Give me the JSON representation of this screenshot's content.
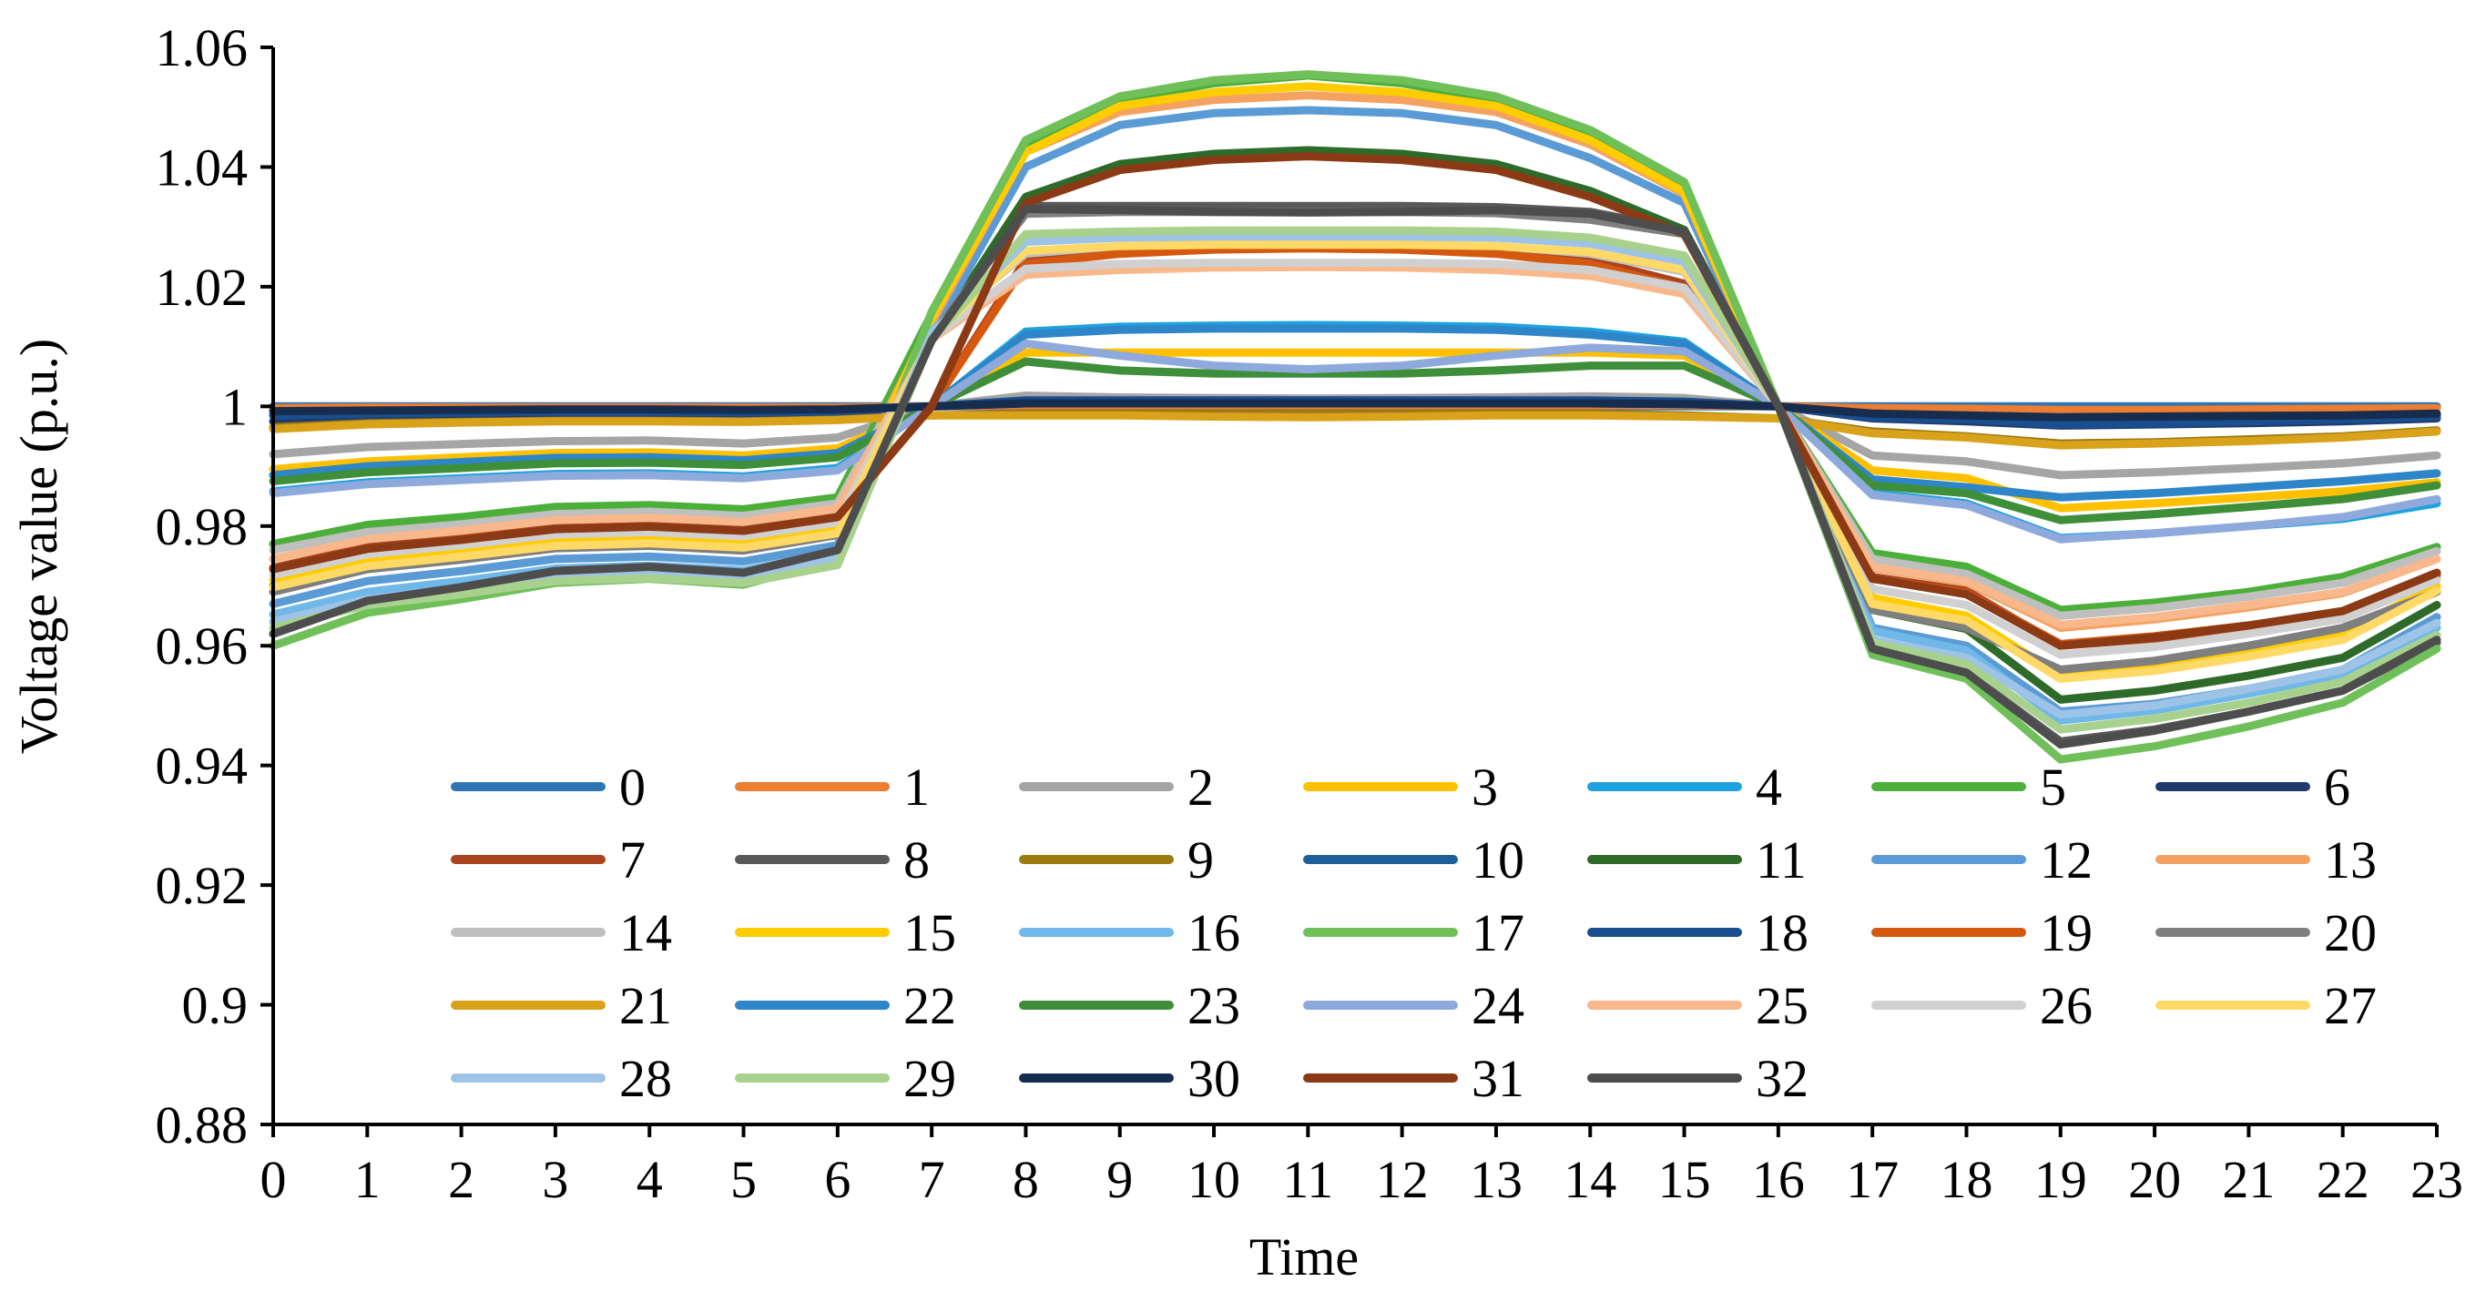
{
  "chart_data": {
    "type": "line",
    "title": "",
    "xlabel": "Time",
    "ylabel": "Voltage value (p.u.)",
    "x": [
      0,
      1,
      2,
      3,
      4,
      5,
      6,
      7,
      8,
      9,
      10,
      11,
      12,
      13,
      14,
      15,
      16,
      17,
      18,
      19,
      20,
      21,
      22,
      23
    ],
    "ylim": [
      0.88,
      1.06
    ],
    "yticks": [
      "0.88",
      "0.9",
      "0.92",
      "0.94",
      "0.96",
      "0.98",
      "1",
      "1.02",
      "1.04",
      "1.06"
    ],
    "xticks": [
      "0",
      "1",
      "2",
      "3",
      "4",
      "5",
      "6",
      "7",
      "8",
      "9",
      "10",
      "11",
      "12",
      "13",
      "14",
      "15",
      "16",
      "17",
      "18",
      "19",
      "20",
      "21",
      "22",
      "23"
    ],
    "grid": false,
    "legend": "inside-bottom",
    "series": [
      {
        "name": "0",
        "color": "#2E75B6",
        "values": [
          1,
          1,
          1,
          1,
          1,
          1,
          1,
          1,
          1,
          1,
          1,
          1,
          1,
          1,
          1,
          1,
          1,
          1,
          1,
          1,
          1,
          1,
          1,
          1
        ]
      },
      {
        "name": "1",
        "color": "#ED7D31",
        "values": [
          0.9997,
          0.9998,
          0.9998,
          0.9998,
          0.9998,
          0.9998,
          0.9998,
          1,
          1.0002,
          1.0002,
          1.0002,
          1.0002,
          1.0002,
          1.0002,
          1.0002,
          1.0002,
          1,
          0.9997,
          0.9996,
          0.9994,
          0.9994,
          0.9995,
          0.9996,
          0.9997
        ]
      },
      {
        "name": "2",
        "color": "#A5A5A5",
        "values": [
          0.992,
          0.9932,
          0.9937,
          0.9942,
          0.9943,
          0.9938,
          0.9948,
          1,
          1.0018,
          1.0015,
          1.0014,
          1.0013,
          1.0014,
          1.0015,
          1.0017,
          1.0014,
          1,
          0.9918,
          0.9908,
          0.9885,
          0.989,
          0.9897,
          0.9905,
          0.9918
        ]
      },
      {
        "name": "3",
        "color": "#FFC000",
        "values": [
          0.9895,
          0.9908,
          0.9915,
          0.9922,
          0.9923,
          0.9918,
          0.993,
          1,
          1.009,
          1.009,
          1.009,
          1.009,
          1.009,
          1.009,
          1.009,
          1.0085,
          1,
          0.9893,
          0.988,
          0.983,
          0.9838,
          0.9848,
          0.9858,
          0.9873
        ]
      },
      {
        "name": "4",
        "color": "#1FA3E0",
        "values": [
          0.9858,
          0.9873,
          0.988,
          0.9887,
          0.9888,
          0.9883,
          0.9897,
          1,
          1.0125,
          1.0133,
          1.0135,
          1.0136,
          1.0135,
          1.0133,
          1.0125,
          1.0108,
          1,
          0.9855,
          0.9838,
          0.978,
          0.9788,
          0.98,
          0.9812,
          0.9838
        ]
      },
      {
        "name": "5",
        "color": "#4CAF3A",
        "values": [
          0.977,
          0.9802,
          0.9815,
          0.9832,
          0.9835,
          0.9828,
          0.9848,
          1.0155,
          1.044,
          1.0512,
          1.054,
          1.0553,
          1.054,
          1.0512,
          1.0458,
          1.037,
          1,
          0.9755,
          0.9732,
          0.966,
          0.9672,
          0.969,
          0.9715,
          0.9765
        ]
      },
      {
        "name": "6",
        "color": "#1F3A6B",
        "values": [
          0.9975,
          0.9982,
          0.9984,
          0.9986,
          0.9986,
          0.9985,
          0.9988,
          1,
          1.0005,
          1.0005,
          1.0005,
          1.0005,
          1.0005,
          1.0005,
          1.0005,
          1.0004,
          1,
          0.998,
          0.9975,
          0.9968,
          0.997,
          0.9972,
          0.9975,
          0.998
        ]
      },
      {
        "name": "7",
        "color": "#A9441E",
        "values": [
          0.973,
          0.9765,
          0.978,
          0.9798,
          0.9802,
          0.9795,
          0.9818,
          1,
          1.0245,
          1.0262,
          1.0268,
          1.027,
          1.0268,
          1.0262,
          1.0245,
          1.0205,
          1,
          0.9715,
          0.9692,
          0.96,
          0.9612,
          0.963,
          0.965,
          0.9718
        ]
      },
      {
        "name": "8",
        "color": "#595959",
        "values": [
          0.962,
          0.9675,
          0.9698,
          0.9725,
          0.9732,
          0.9722,
          0.976,
          1.011,
          1.0335,
          1.0335,
          1.0335,
          1.0335,
          1.0335,
          1.0333,
          1.0325,
          1.0295,
          1,
          0.9595,
          0.9555,
          0.944,
          0.946,
          0.949,
          0.9525,
          0.9605
        ]
      },
      {
        "name": "9",
        "color": "#9C7A0F",
        "values": [
          0.9965,
          0.9972,
          0.9974,
          0.9976,
          0.9976,
          0.9975,
          0.9978,
          0.9985,
          0.9988,
          0.9988,
          0.9988,
          0.9988,
          0.9988,
          0.9988,
          0.9988,
          0.9985,
          0.998,
          0.9958,
          0.995,
          0.9938,
          0.994,
          0.9945,
          0.995,
          0.996
        ]
      },
      {
        "name": "10",
        "color": "#1F5F99",
        "values": [
          0.9985,
          0.9988,
          0.999,
          0.9991,
          0.9991,
          0.999,
          0.9992,
          1,
          1.0008,
          1.0008,
          1.0008,
          1.0008,
          1.0008,
          1.0008,
          1.0008,
          1.0006,
          1,
          0.9985,
          0.998,
          0.9975,
          0.9976,
          0.9978,
          0.998,
          0.9985
        ]
      },
      {
        "name": "11",
        "color": "#2E6B2A",
        "values": [
          0.97,
          0.9735,
          0.975,
          0.9768,
          0.9772,
          0.9765,
          0.979,
          1.011,
          1.035,
          1.0405,
          1.0422,
          1.0428,
          1.0422,
          1.0405,
          1.036,
          1.0295,
          1,
          0.966,
          0.9628,
          0.951,
          0.9525,
          0.955,
          0.958,
          0.9668
        ]
      },
      {
        "name": "12",
        "color": "#5B9BD5",
        "values": [
          0.967,
          0.9708,
          0.9725,
          0.9745,
          0.9749,
          0.9741,
          0.9768,
          1.012,
          1.04,
          1.047,
          1.049,
          1.0495,
          1.049,
          1.047,
          1.0415,
          1.034,
          1,
          0.963,
          0.96,
          0.949,
          0.9503,
          0.9528,
          0.956,
          0.9648
        ]
      },
      {
        "name": "13",
        "color": "#F4A261",
        "values": [
          0.9745,
          0.9778,
          0.9792,
          0.981,
          0.9814,
          0.9807,
          0.9828,
          1.014,
          1.0425,
          1.0492,
          1.0512,
          1.052,
          1.0512,
          1.0492,
          1.0438,
          1.0355,
          1,
          0.973,
          0.9706,
          0.963,
          0.9644,
          0.9664,
          0.9688,
          0.9745
        ]
      },
      {
        "name": "14",
        "color": "#BFBFBF",
        "values": [
          0.976,
          0.979,
          0.9803,
          0.982,
          0.9824,
          0.9817,
          0.9838,
          1.0125,
          1.0255,
          1.0268,
          1.0272,
          1.0273,
          1.0272,
          1.0268,
          1.0255,
          1.0225,
          1,
          0.9745,
          0.972,
          0.965,
          0.9663,
          0.9682,
          0.9705,
          0.9758
        ]
      },
      {
        "name": "15",
        "color": "#FFCC00",
        "values": [
          0.971,
          0.9745,
          0.976,
          0.9778,
          0.9782,
          0.9775,
          0.98,
          1.0148,
          1.0425,
          1.0502,
          1.0525,
          1.0535,
          1.0525,
          1.0502,
          1.0445,
          1.0358,
          1,
          0.968,
          0.965,
          0.955,
          0.9565,
          0.959,
          0.9622,
          0.97
        ]
      },
      {
        "name": "16",
        "color": "#6FB8E8",
        "values": [
          0.9652,
          0.969,
          0.9708,
          0.9729,
          0.9734,
          0.9726,
          0.9755,
          1.0125,
          1.028,
          1.0288,
          1.029,
          1.029,
          1.029,
          1.0288,
          1.028,
          1.0252,
          1,
          0.9625,
          0.9592,
          0.9475,
          0.9492,
          0.952,
          0.9552,
          0.963
        ]
      },
      {
        "name": "17",
        "color": "#70C05A",
        "values": [
          0.96,
          0.9655,
          0.9678,
          0.9705,
          0.9712,
          0.9702,
          0.9745,
          1.0158,
          1.0445,
          1.0518,
          1.0545,
          1.0555,
          1.0545,
          1.0518,
          1.0462,
          1.0375,
          1,
          0.9585,
          0.9545,
          0.941,
          0.9432,
          0.9465,
          0.9505,
          0.9595
        ]
      },
      {
        "name": "18",
        "color": "#1A4F8F",
        "values": [
          0.9985,
          0.9988,
          0.999,
          0.9991,
          0.9991,
          0.999,
          0.9992,
          1,
          1.001,
          1.001,
          1.001,
          1.001,
          1.001,
          1.001,
          1.001,
          1.0008,
          1,
          0.9982,
          0.9978,
          0.997,
          0.9972,
          0.9975,
          0.9978,
          0.9983
        ]
      },
      {
        "name": "19",
        "color": "#D4580F",
        "values": [
          0.9728,
          0.9762,
          0.9777,
          0.9795,
          0.9799,
          0.9792,
          0.9815,
          1,
          1.0238,
          1.0255,
          1.0262,
          1.0264,
          1.0262,
          1.0255,
          1.0238,
          1.0198,
          1,
          0.9712,
          0.9688,
          0.9603,
          0.9616,
          0.9634,
          0.9655,
          0.972
        ]
      },
      {
        "name": "20",
        "color": "#7F7F7F",
        "values": [
          0.969,
          0.9728,
          0.9744,
          0.9763,
          0.9767,
          0.9759,
          0.9785,
          1.0118,
          1.0322,
          1.0325,
          1.0325,
          1.0325,
          1.0325,
          1.0323,
          1.0312,
          1.0288,
          1,
          0.966,
          0.963,
          0.956,
          0.9575,
          0.96,
          0.963,
          0.969
        ]
      },
      {
        "name": "21",
        "color": "#D9A21B",
        "values": [
          0.9962,
          0.997,
          0.9973,
          0.9975,
          0.9975,
          0.9974,
          0.9977,
          0.9985,
          0.9985,
          0.9985,
          0.9983,
          0.9982,
          0.9983,
          0.9985,
          0.9985,
          0.9983,
          0.998,
          0.9955,
          0.9948,
          0.9935,
          0.9938,
          0.9942,
          0.9948,
          0.9958
        ]
      },
      {
        "name": "22",
        "color": "#2E86C8",
        "values": [
          0.9885,
          0.99,
          0.9907,
          0.9914,
          0.9915,
          0.991,
          0.9922,
          1,
          1.012,
          1.0128,
          1.013,
          1.013,
          1.013,
          1.0128,
          1.012,
          1.0105,
          1,
          0.9878,
          0.9865,
          0.9848,
          0.9855,
          0.9865,
          0.9875,
          0.9888
        ]
      },
      {
        "name": "23",
        "color": "#3E8E3A",
        "values": [
          0.9875,
          0.989,
          0.9897,
          0.9905,
          0.9906,
          0.9902,
          0.9915,
          1,
          1.0075,
          1.006,
          1.0055,
          1.0055,
          1.0055,
          1.006,
          1.0068,
          1.0068,
          1,
          0.9868,
          0.9855,
          0.981,
          0.982,
          0.9832,
          0.9845,
          0.9868
        ]
      },
      {
        "name": "24",
        "color": "#8EA9DB",
        "values": [
          0.9855,
          0.987,
          0.9877,
          0.9884,
          0.9885,
          0.988,
          0.9893,
          1,
          1.0105,
          1.0085,
          1.0068,
          1.0062,
          1.0068,
          1.0085,
          1.0098,
          1.0092,
          1,
          0.9852,
          0.9835,
          0.9778,
          0.9788,
          0.98,
          0.9815,
          0.9845
        ]
      },
      {
        "name": "25",
        "color": "#F8B88B",
        "values": [
          0.9745,
          0.9778,
          0.9793,
          0.981,
          0.9814,
          0.9807,
          0.983,
          1.0112,
          1.022,
          1.0228,
          1.0232,
          1.0233,
          1.0232,
          1.0228,
          1.0218,
          1.0188,
          1,
          0.9732,
          0.9708,
          0.9635,
          0.9648,
          0.9668,
          0.969,
          0.9745
        ]
      },
      {
        "name": "26",
        "color": "#D0D0D0",
        "values": [
          0.9718,
          0.9753,
          0.9768,
          0.9786,
          0.979,
          0.9783,
          0.9806,
          1.0115,
          1.023,
          1.0238,
          1.024,
          1.024,
          1.024,
          1.0238,
          1.0228,
          1.0198,
          1,
          0.9695,
          0.9668,
          0.9585,
          0.9598,
          0.962,
          0.9645,
          0.971
        ]
      },
      {
        "name": "27",
        "color": "#FFD966",
        "values": [
          0.9698,
          0.9733,
          0.9749,
          0.9767,
          0.9771,
          0.9764,
          0.9788,
          1.0118,
          1.026,
          1.0268,
          1.027,
          1.027,
          1.027,
          1.0268,
          1.0258,
          1.0228,
          1,
          0.967,
          0.9642,
          0.9545,
          0.9558,
          0.9582,
          0.961,
          0.9692
        ]
      },
      {
        "name": "28",
        "color": "#9DC3E6",
        "values": [
          0.964,
          0.9678,
          0.9696,
          0.9718,
          0.9723,
          0.9715,
          0.9745,
          1.0122,
          1.0275,
          1.0282,
          1.0285,
          1.0285,
          1.0285,
          1.0282,
          1.0272,
          1.0242,
          1,
          0.961,
          0.958,
          0.9485,
          0.95,
          0.9528,
          0.956,
          0.9638
        ]
      },
      {
        "name": "29",
        "color": "#A9D18E",
        "values": [
          0.963,
          0.9668,
          0.9686,
          0.9708,
          0.9713,
          0.9705,
          0.9735,
          1.0112,
          1.0288,
          1.0292,
          1.0294,
          1.0294,
          1.0294,
          1.0292,
          1.0282,
          1.0252,
          1,
          0.9605,
          0.957,
          0.946,
          0.9478,
          0.9505,
          0.954,
          0.9618
        ]
      },
      {
        "name": "30",
        "color": "#172D4F",
        "values": [
          0.9992,
          0.9993,
          0.9994,
          0.9995,
          0.9995,
          0.9994,
          0.9995,
          1,
          1.0005,
          1.0005,
          1.0005,
          1.0005,
          1.0005,
          1.0005,
          1.0005,
          1.0004,
          1,
          0.9988,
          0.9985,
          0.9982,
          0.9983,
          0.9984,
          0.9985,
          0.9988
        ]
      },
      {
        "name": "31",
        "color": "#8B3A15",
        "values": [
          0.9728,
          0.9762,
          0.9777,
          0.9795,
          0.9799,
          0.9792,
          0.9815,
          1,
          1.034,
          1.0395,
          1.0412,
          1.0418,
          1.0412,
          1.0395,
          1.035,
          1.0288,
          1,
          0.9712,
          0.9686,
          0.96,
          0.9614,
          0.9634,
          0.9658,
          0.9722
        ]
      },
      {
        "name": "32",
        "color": "#4D4D4D",
        "values": [
          0.962,
          0.9675,
          0.9698,
          0.9725,
          0.9732,
          0.9722,
          0.976,
          1.011,
          1.033,
          1.0328,
          1.0325,
          1.0324,
          1.0325,
          1.0328,
          1.0322,
          1.0292,
          1,
          0.9595,
          0.9555,
          0.9435,
          0.9458,
          0.949,
          0.9525,
          0.961
        ]
      }
    ]
  }
}
